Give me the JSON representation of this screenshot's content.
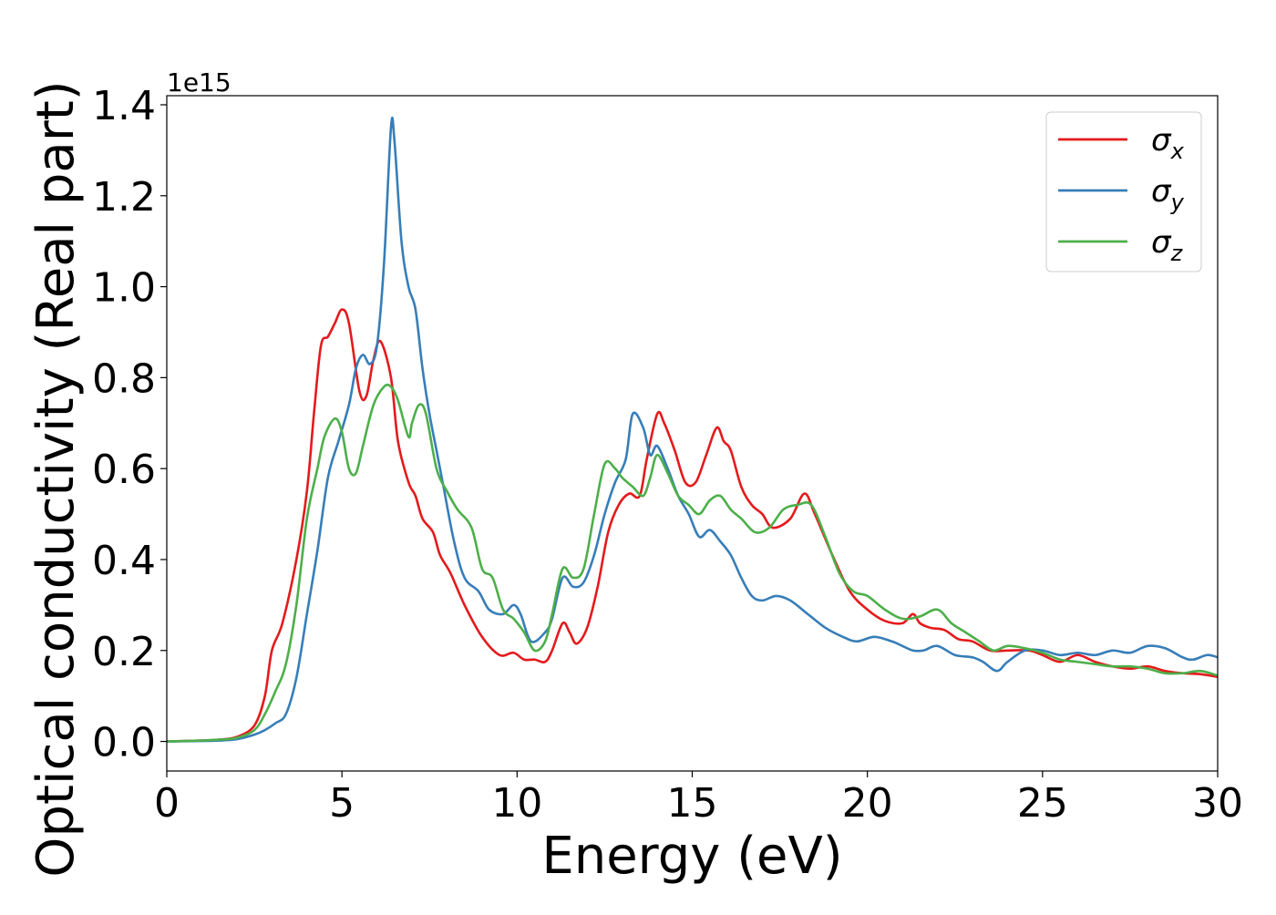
{
  "chart_data": {
    "type": "line",
    "xlabel": "Energy (eV)",
    "ylabel": "Optical conductivity (Real part)",
    "y_offset_text": "1e15",
    "xlim": [
      0,
      30
    ],
    "ylim": [
      -0.065,
      1.42
    ],
    "x_ticks": [
      0,
      5,
      10,
      15,
      20,
      25,
      30
    ],
    "x_tick_labels": [
      "0",
      "5",
      "10",
      "15",
      "20",
      "25",
      "30"
    ],
    "y_ticks": [
      0.0,
      0.2,
      0.4,
      0.6,
      0.8,
      1.0,
      1.2,
      1.4
    ],
    "y_tick_labels": [
      "0.0",
      "0.2",
      "0.4",
      "0.6",
      "0.8",
      "1.0",
      "1.2",
      "1.4"
    ],
    "grid": false,
    "legend_position": "top-right",
    "series": [
      {
        "name": "σx",
        "name_base": "σ",
        "name_sub": "x",
        "color": "#e41a1c",
        "points": [
          [
            0,
            0
          ],
          [
            1,
            0.002
          ],
          [
            1.5,
            0.004
          ],
          [
            2,
            0.01
          ],
          [
            2.5,
            0.035
          ],
          [
            2.8,
            0.1
          ],
          [
            3.0,
            0.2
          ],
          [
            3.3,
            0.26
          ],
          [
            3.7,
            0.4
          ],
          [
            4.0,
            0.55
          ],
          [
            4.2,
            0.72
          ],
          [
            4.4,
            0.87
          ],
          [
            4.6,
            0.89
          ],
          [
            4.8,
            0.92
          ],
          [
            5.0,
            0.95
          ],
          [
            5.2,
            0.92
          ],
          [
            5.5,
            0.77
          ],
          [
            5.7,
            0.76
          ],
          [
            5.9,
            0.84
          ],
          [
            6.1,
            0.88
          ],
          [
            6.4,
            0.8
          ],
          [
            6.6,
            0.66
          ],
          [
            6.9,
            0.57
          ],
          [
            7.1,
            0.54
          ],
          [
            7.3,
            0.49
          ],
          [
            7.6,
            0.46
          ],
          [
            7.8,
            0.41
          ],
          [
            8.1,
            0.37
          ],
          [
            8.5,
            0.3
          ],
          [
            9.0,
            0.23
          ],
          [
            9.5,
            0.19
          ],
          [
            9.9,
            0.195
          ],
          [
            10.2,
            0.18
          ],
          [
            10.5,
            0.18
          ],
          [
            10.8,
            0.175
          ],
          [
            11.0,
            0.2
          ],
          [
            11.3,
            0.26
          ],
          [
            11.5,
            0.24
          ],
          [
            11.7,
            0.215
          ],
          [
            12.0,
            0.25
          ],
          [
            12.3,
            0.34
          ],
          [
            12.6,
            0.46
          ],
          [
            12.9,
            0.52
          ],
          [
            13.2,
            0.545
          ],
          [
            13.5,
            0.54
          ],
          [
            13.7,
            0.62
          ],
          [
            14.0,
            0.72
          ],
          [
            14.2,
            0.7
          ],
          [
            14.5,
            0.64
          ],
          [
            14.8,
            0.57
          ],
          [
            15.1,
            0.57
          ],
          [
            15.4,
            0.63
          ],
          [
            15.7,
            0.69
          ],
          [
            15.9,
            0.66
          ],
          [
            16.1,
            0.64
          ],
          [
            16.4,
            0.56
          ],
          [
            16.7,
            0.52
          ],
          [
            17.0,
            0.5
          ],
          [
            17.3,
            0.47
          ],
          [
            17.8,
            0.49
          ],
          [
            18.2,
            0.545
          ],
          [
            18.5,
            0.5
          ],
          [
            19.0,
            0.41
          ],
          [
            19.5,
            0.33
          ],
          [
            20.0,
            0.29
          ],
          [
            20.5,
            0.265
          ],
          [
            21.0,
            0.26
          ],
          [
            21.3,
            0.28
          ],
          [
            21.5,
            0.26
          ],
          [
            21.8,
            0.25
          ],
          [
            22.2,
            0.245
          ],
          [
            22.6,
            0.225
          ],
          [
            23.0,
            0.22
          ],
          [
            23.5,
            0.2
          ],
          [
            24.0,
            0.2
          ],
          [
            24.6,
            0.2
          ],
          [
            25.0,
            0.19
          ],
          [
            25.5,
            0.175
          ],
          [
            26.0,
            0.19
          ],
          [
            26.5,
            0.175
          ],
          [
            27.0,
            0.165
          ],
          [
            27.5,
            0.16
          ],
          [
            28.0,
            0.165
          ],
          [
            28.5,
            0.155
          ],
          [
            29.0,
            0.15
          ],
          [
            29.5,
            0.148
          ],
          [
            30.0,
            0.142
          ]
        ]
      },
      {
        "name": "σy",
        "name_base": "σ",
        "name_sub": "y",
        "color": "#377eb8",
        "points": [
          [
            0,
            0
          ],
          [
            1,
            0.001
          ],
          [
            1.5,
            0.002
          ],
          [
            2,
            0.005
          ],
          [
            2.5,
            0.015
          ],
          [
            2.8,
            0.025
          ],
          [
            3.1,
            0.04
          ],
          [
            3.4,
            0.06
          ],
          [
            3.7,
            0.14
          ],
          [
            4.0,
            0.28
          ],
          [
            4.3,
            0.42
          ],
          [
            4.6,
            0.58
          ],
          [
            4.9,
            0.66
          ],
          [
            5.2,
            0.74
          ],
          [
            5.4,
            0.82
          ],
          [
            5.6,
            0.85
          ],
          [
            5.8,
            0.83
          ],
          [
            6.0,
            0.87
          ],
          [
            6.2,
            1.05
          ],
          [
            6.4,
            1.35
          ],
          [
            6.5,
            1.32
          ],
          [
            6.7,
            1.1
          ],
          [
            6.9,
            1.0
          ],
          [
            7.1,
            0.95
          ],
          [
            7.3,
            0.82
          ],
          [
            7.5,
            0.72
          ],
          [
            7.7,
            0.64
          ],
          [
            7.9,
            0.56
          ],
          [
            8.2,
            0.44
          ],
          [
            8.5,
            0.36
          ],
          [
            8.9,
            0.33
          ],
          [
            9.2,
            0.29
          ],
          [
            9.6,
            0.28
          ],
          [
            9.9,
            0.3
          ],
          [
            10.1,
            0.28
          ],
          [
            10.4,
            0.22
          ],
          [
            10.8,
            0.24
          ],
          [
            11.0,
            0.27
          ],
          [
            11.3,
            0.36
          ],
          [
            11.6,
            0.34
          ],
          [
            11.9,
            0.35
          ],
          [
            12.2,
            0.41
          ],
          [
            12.5,
            0.5
          ],
          [
            12.8,
            0.57
          ],
          [
            13.1,
            0.62
          ],
          [
            13.3,
            0.72
          ],
          [
            13.6,
            0.69
          ],
          [
            13.8,
            0.63
          ],
          [
            14.0,
            0.65
          ],
          [
            14.3,
            0.6
          ],
          [
            14.6,
            0.54
          ],
          [
            14.9,
            0.5
          ],
          [
            15.2,
            0.45
          ],
          [
            15.5,
            0.465
          ],
          [
            15.8,
            0.44
          ],
          [
            16.1,
            0.41
          ],
          [
            16.4,
            0.36
          ],
          [
            16.7,
            0.32
          ],
          [
            17.0,
            0.31
          ],
          [
            17.4,
            0.32
          ],
          [
            17.8,
            0.31
          ],
          [
            18.3,
            0.28
          ],
          [
            18.8,
            0.25
          ],
          [
            19.3,
            0.23
          ],
          [
            19.7,
            0.22
          ],
          [
            20.2,
            0.23
          ],
          [
            20.7,
            0.22
          ],
          [
            21.0,
            0.21
          ],
          [
            21.3,
            0.2
          ],
          [
            21.6,
            0.2
          ],
          [
            22.0,
            0.21
          ],
          [
            22.5,
            0.19
          ],
          [
            23.0,
            0.185
          ],
          [
            23.3,
            0.175
          ],
          [
            23.7,
            0.155
          ],
          [
            24.0,
            0.175
          ],
          [
            24.5,
            0.2
          ],
          [
            25.0,
            0.2
          ],
          [
            25.5,
            0.19
          ],
          [
            26.0,
            0.195
          ],
          [
            26.5,
            0.19
          ],
          [
            27.0,
            0.2
          ],
          [
            27.5,
            0.195
          ],
          [
            28.0,
            0.21
          ],
          [
            28.5,
            0.205
          ],
          [
            29.0,
            0.185
          ],
          [
            29.3,
            0.18
          ],
          [
            29.7,
            0.19
          ],
          [
            30.0,
            0.185
          ]
        ]
      },
      {
        "name": "σz",
        "name_base": "σ",
        "name_sub": "z",
        "color": "#4daf4a",
        "points": [
          [
            0,
            0
          ],
          [
            1,
            0.002
          ],
          [
            1.5,
            0.004
          ],
          [
            2,
            0.008
          ],
          [
            2.5,
            0.025
          ],
          [
            2.8,
            0.06
          ],
          [
            3.1,
            0.11
          ],
          [
            3.4,
            0.17
          ],
          [
            3.7,
            0.3
          ],
          [
            4.0,
            0.49
          ],
          [
            4.3,
            0.6
          ],
          [
            4.5,
            0.67
          ],
          [
            4.8,
            0.71
          ],
          [
            5.0,
            0.68
          ],
          [
            5.2,
            0.6
          ],
          [
            5.4,
            0.59
          ],
          [
            5.6,
            0.65
          ],
          [
            5.9,
            0.74
          ],
          [
            6.2,
            0.78
          ],
          [
            6.4,
            0.78
          ],
          [
            6.6,
            0.75
          ],
          [
            6.9,
            0.67
          ],
          [
            7.0,
            0.7
          ],
          [
            7.2,
            0.74
          ],
          [
            7.4,
            0.72
          ],
          [
            7.7,
            0.6
          ],
          [
            8.0,
            0.55
          ],
          [
            8.3,
            0.51
          ],
          [
            8.7,
            0.47
          ],
          [
            9.0,
            0.38
          ],
          [
            9.3,
            0.36
          ],
          [
            9.6,
            0.29
          ],
          [
            9.9,
            0.27
          ],
          [
            10.2,
            0.24
          ],
          [
            10.5,
            0.2
          ],
          [
            10.8,
            0.22
          ],
          [
            11.0,
            0.28
          ],
          [
            11.3,
            0.38
          ],
          [
            11.6,
            0.36
          ],
          [
            11.9,
            0.38
          ],
          [
            12.2,
            0.5
          ],
          [
            12.5,
            0.61
          ],
          [
            12.8,
            0.6
          ],
          [
            13.0,
            0.58
          ],
          [
            13.3,
            0.56
          ],
          [
            13.6,
            0.54
          ],
          [
            13.8,
            0.58
          ],
          [
            14.0,
            0.63
          ],
          [
            14.3,
            0.59
          ],
          [
            14.6,
            0.54
          ],
          [
            14.9,
            0.52
          ],
          [
            15.2,
            0.5
          ],
          [
            15.5,
            0.53
          ],
          [
            15.8,
            0.54
          ],
          [
            16.1,
            0.51
          ],
          [
            16.4,
            0.49
          ],
          [
            16.8,
            0.46
          ],
          [
            17.2,
            0.47
          ],
          [
            17.6,
            0.51
          ],
          [
            18.0,
            0.52
          ],
          [
            18.4,
            0.52
          ],
          [
            18.8,
            0.45
          ],
          [
            19.2,
            0.37
          ],
          [
            19.6,
            0.33
          ],
          [
            20.0,
            0.32
          ],
          [
            20.5,
            0.29
          ],
          [
            21.0,
            0.27
          ],
          [
            21.5,
            0.275
          ],
          [
            22.0,
            0.29
          ],
          [
            22.4,
            0.26
          ],
          [
            22.8,
            0.24
          ],
          [
            23.2,
            0.22
          ],
          [
            23.6,
            0.2
          ],
          [
            24.0,
            0.21
          ],
          [
            24.5,
            0.205
          ],
          [
            25.0,
            0.195
          ],
          [
            25.5,
            0.18
          ],
          [
            26.0,
            0.175
          ],
          [
            26.5,
            0.17
          ],
          [
            27.0,
            0.165
          ],
          [
            27.5,
            0.165
          ],
          [
            28.0,
            0.16
          ],
          [
            28.5,
            0.15
          ],
          [
            29.0,
            0.15
          ],
          [
            29.5,
            0.155
          ],
          [
            30.0,
            0.145
          ]
        ]
      }
    ]
  }
}
